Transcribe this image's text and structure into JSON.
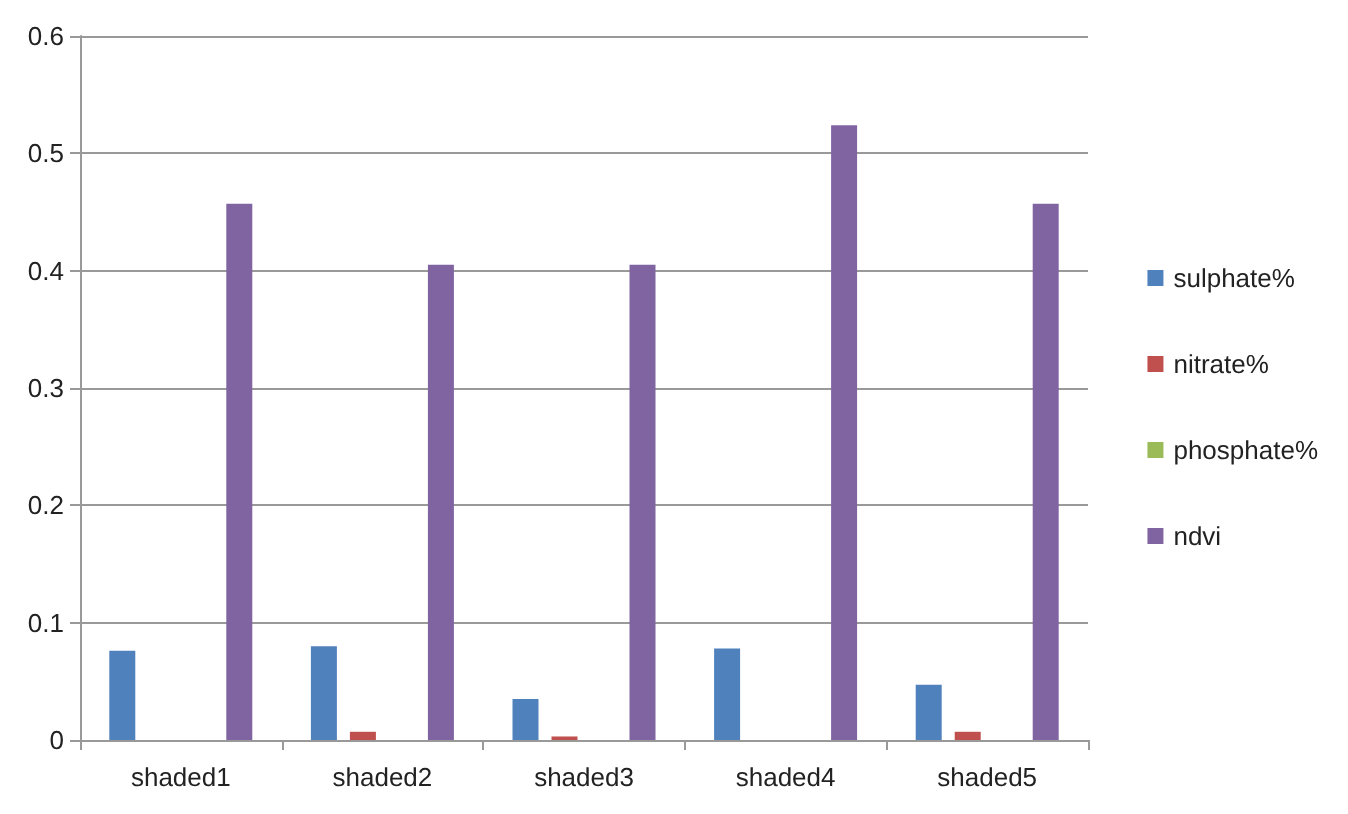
{
  "chart_data": {
    "type": "bar",
    "categories": [
      "shaded1",
      "shaded2",
      "shaded3",
      "shaded4",
      "shaded5"
    ],
    "series": [
      {
        "name": "sulphate%",
        "color": "#4f81bd",
        "values": [
          0.076,
          0.08,
          0.035,
          0.078,
          0.047
        ]
      },
      {
        "name": "nitrate%",
        "color": "#c0504d",
        "values": [
          0,
          0.007,
          0.003,
          0,
          0.007
        ]
      },
      {
        "name": "phosphate%",
        "color": "#9bbb59",
        "values": [
          0,
          0,
          0,
          0,
          0
        ]
      },
      {
        "name": "ndvi",
        "color": "#8064a2",
        "values": [
          0.457,
          0.405,
          0.405,
          0.524,
          0.457
        ]
      }
    ],
    "ylim": [
      0,
      0.6
    ],
    "yticks": [
      0,
      0.1,
      0.2,
      0.3,
      0.4,
      0.5,
      0.6
    ],
    "grid": "y",
    "legend": "right"
  }
}
